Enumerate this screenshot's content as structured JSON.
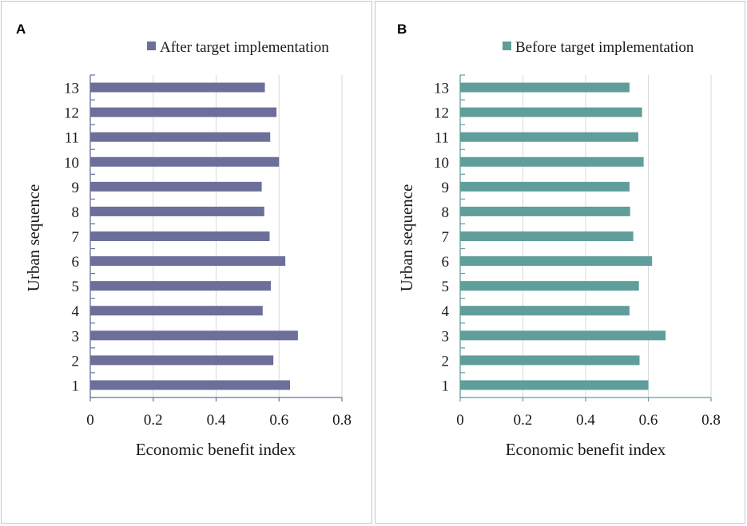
{
  "chart_data": [
    {
      "type": "bar",
      "orientation": "horizontal",
      "panel_label": "A",
      "legend": "After target implementation",
      "color": "#6b6f9a",
      "axis_color": "#6b6f9a",
      "categories": [
        "1",
        "2",
        "3",
        "4",
        "5",
        "6",
        "7",
        "8",
        "9",
        "10",
        "11",
        "12",
        "13"
      ],
      "values": [
        0.635,
        0.582,
        0.66,
        0.548,
        0.574,
        0.62,
        0.57,
        0.553,
        0.545,
        0.6,
        0.572,
        0.592,
        0.555
      ],
      "xlabel": "Economic benefit index",
      "ylabel": "Urban sequence",
      "xlim": [
        0,
        0.8
      ],
      "xticks": [
        "0",
        "0.2",
        "0.4",
        "0.6",
        "0.8"
      ],
      "grid": "vertical"
    },
    {
      "type": "bar",
      "orientation": "horizontal",
      "panel_label": "B",
      "legend": "Before target implementation",
      "color": "#5f9e9b",
      "axis_color": "#5f9e9b",
      "categories": [
        "1",
        "2",
        "3",
        "4",
        "5",
        "6",
        "7",
        "8",
        "9",
        "10",
        "11",
        "12",
        "13"
      ],
      "values": [
        0.6,
        0.572,
        0.655,
        0.54,
        0.57,
        0.612,
        0.552,
        0.542,
        0.54,
        0.585,
        0.568,
        0.58,
        0.54
      ],
      "xlabel": "Economic benefit index",
      "ylabel": "Urban sequence",
      "xlim": [
        0,
        0.8
      ],
      "xticks": [
        "0",
        "0.2",
        "0.4",
        "0.6",
        "0.8"
      ],
      "grid": "vertical"
    }
  ]
}
